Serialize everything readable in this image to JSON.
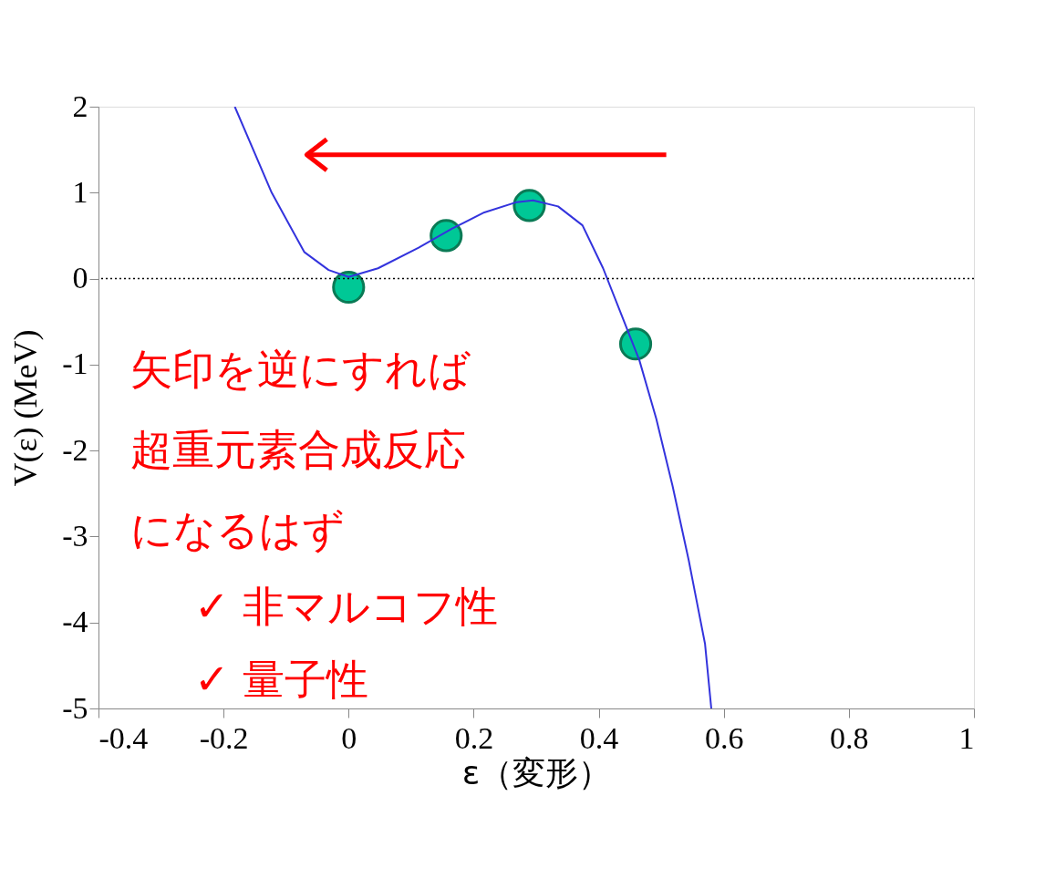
{
  "chart_data": {
    "type": "line",
    "xlabel": "ε（変形）",
    "ylabel": "V(ε)  (MeV)",
    "xlim": [
      -0.4,
      1
    ],
    "xticks": [
      -0.4,
      -0.2,
      0,
      0.2,
      0.4,
      0.6,
      0.8,
      1
    ],
    "ylim": [
      -5,
      2
    ],
    "yticks": [
      -5,
      -4,
      -3,
      -2,
      -1,
      0,
      1,
      2
    ],
    "grid": false,
    "series": [
      {
        "color": "#3333dd",
        "line_style": "solid",
        "x": [
          -0.182,
          -0.123,
          -0.071,
          -0.032,
          0,
          0.047,
          0.112,
          0.165,
          0.217,
          0.269,
          0.295,
          0.335,
          0.374,
          0.407,
          0.439,
          0.465,
          0.492,
          0.518,
          0.544,
          0.57,
          0.58
        ],
        "values": [
          2,
          1.0,
          0.31,
          0.1,
          0.02,
          0.12,
          0.36,
          0.58,
          0.77,
          0.89,
          0.91,
          0.84,
          0.62,
          0.12,
          -0.47,
          -0.95,
          -1.63,
          -2.41,
          -3.28,
          -4.25,
          -5
        ]
      },
      {
        "type": "line",
        "color": "#ff0000",
        "line_style": "solid",
        "x": [
          0.508,
          -0.067
        ],
        "values": [
          1.44,
          1.44
        ]
      },
      {
        "type": "line",
        "color": "#ff0000",
        "line_style": "solid",
        "x": [
          -0.035,
          -0.067,
          -0.035
        ],
        "values": [
          1.62,
          1.44,
          1.26
        ]
      },
      {
        "type": "scatter",
        "color": "#00c896",
        "marker": "circle",
        "x": [
          0,
          0.156,
          0.289,
          0.459
        ],
        "values": [
          -0.1,
          0.5,
          0.85,
          -0.76
        ]
      }
    ],
    "ref_lines": [
      {
        "axis": "y",
        "value": 0,
        "line_style": "dotted",
        "color": "#000000"
      }
    ],
    "annotations": [
      "矢印を逆にすれば",
      "超重元素合成反応",
      "になるはず",
      "✓ 非マルコフ性",
      "✓ 量子性"
    ]
  }
}
